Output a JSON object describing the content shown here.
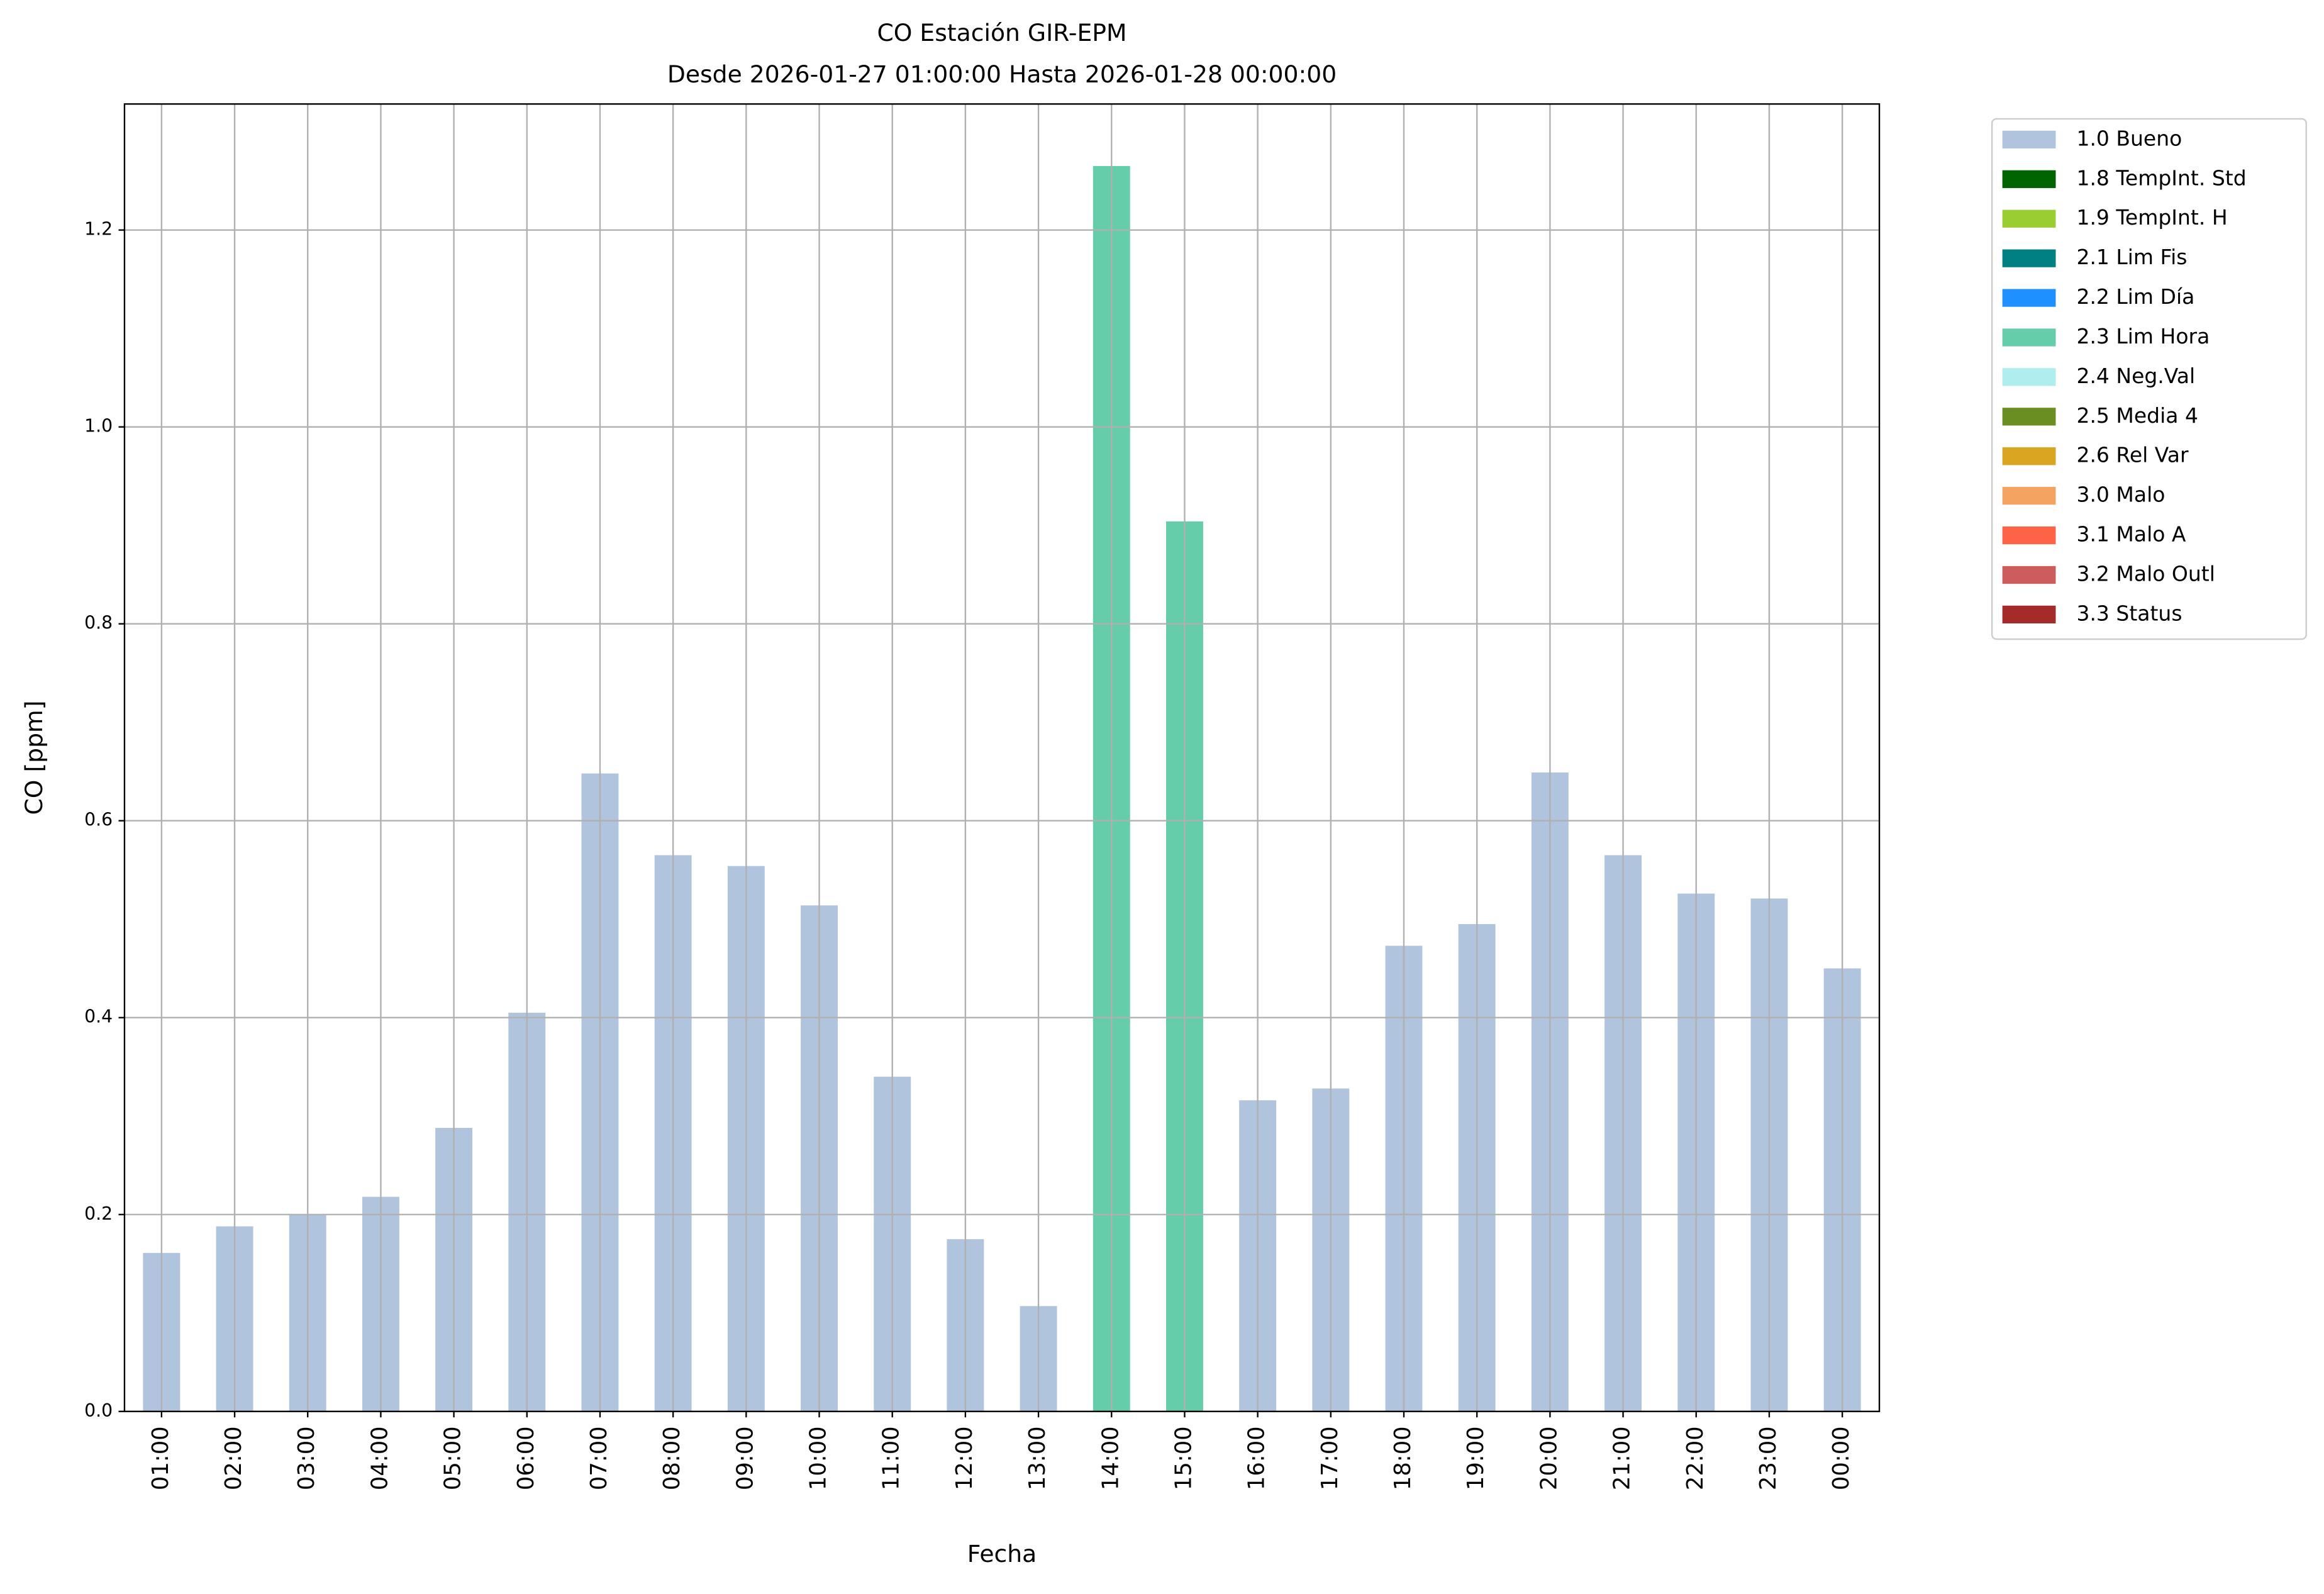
{
  "chart_data": {
    "type": "bar",
    "stacked": true,
    "title": "CO Estación GIR-EPM",
    "subtitle": "Desde 2026-01-27 01:00:00 Hasta 2026-01-28 00:00:00",
    "x_label": "Fecha",
    "y_label": "CO [ppm]",
    "categories": [
      "01:00",
      "02:00",
      "03:00",
      "04:00",
      "05:00",
      "06:00",
      "07:00",
      "08:00",
      "09:00",
      "10:00",
      "11:00",
      "12:00",
      "13:00",
      "14:00",
      "15:00",
      "16:00",
      "17:00",
      "18:00",
      "19:00",
      "20:00",
      "21:00",
      "22:00",
      "23:00",
      "00:00"
    ],
    "series": [
      {
        "name": "1.0 Bueno",
        "color": "#b0c4de",
        "values": [
          0.161,
          0.188,
          0.2,
          0.218,
          0.288,
          0.405,
          0.648,
          0.565,
          0.554,
          0.514,
          0.34,
          0.175,
          0.107,
          null,
          null,
          0.316,
          0.328,
          0.473,
          0.495,
          0.649,
          0.565,
          0.526,
          0.521,
          0.45
        ]
      },
      {
        "name": "1.8 TempInt. Std",
        "color": "#006400",
        "values": [
          null,
          null,
          null,
          null,
          null,
          null,
          null,
          null,
          null,
          null,
          null,
          null,
          null,
          null,
          null,
          null,
          null,
          null,
          null,
          null,
          null,
          null,
          null,
          null
        ]
      },
      {
        "name": "1.9 TempInt. H",
        "color": "#9acd32",
        "values": [
          null,
          null,
          null,
          null,
          null,
          null,
          null,
          null,
          null,
          null,
          null,
          null,
          null,
          null,
          null,
          null,
          null,
          null,
          null,
          null,
          null,
          null,
          null,
          null
        ]
      },
      {
        "name": "2.1 Lim Fis",
        "color": "#008080",
        "values": [
          null,
          null,
          null,
          null,
          null,
          null,
          null,
          null,
          null,
          null,
          null,
          null,
          null,
          null,
          null,
          null,
          null,
          null,
          null,
          null,
          null,
          null,
          null,
          null
        ]
      },
      {
        "name": "2.2 Lim Día",
        "color": "#1e90ff",
        "values": [
          null,
          null,
          null,
          null,
          null,
          null,
          null,
          null,
          null,
          null,
          null,
          null,
          null,
          null,
          null,
          null,
          null,
          null,
          null,
          null,
          null,
          null,
          null,
          null
        ]
      },
      {
        "name": "2.3 Lim Hora",
        "color": "#66cdaa",
        "values": [
          null,
          null,
          null,
          null,
          null,
          null,
          null,
          null,
          null,
          null,
          null,
          null,
          null,
          1.265,
          0.904,
          null,
          null,
          null,
          null,
          null,
          null,
          null,
          null,
          null
        ]
      },
      {
        "name": "2.4 Neg.Val",
        "color": "#afeeee",
        "values": [
          null,
          null,
          null,
          null,
          null,
          null,
          null,
          null,
          null,
          null,
          null,
          null,
          null,
          null,
          null,
          null,
          null,
          null,
          null,
          null,
          null,
          null,
          null,
          null
        ]
      },
      {
        "name": "2.5 Media 4",
        "color": "#6b8e23",
        "values": [
          null,
          null,
          null,
          null,
          null,
          null,
          null,
          null,
          null,
          null,
          null,
          null,
          null,
          null,
          null,
          null,
          null,
          null,
          null,
          null,
          null,
          null,
          null,
          null
        ]
      },
      {
        "name": "2.6 Rel Var",
        "color": "#daa520",
        "values": [
          null,
          null,
          null,
          null,
          null,
          null,
          null,
          null,
          null,
          null,
          null,
          null,
          null,
          null,
          null,
          null,
          null,
          null,
          null,
          null,
          null,
          null,
          null,
          null
        ]
      },
      {
        "name": "3.0 Malo",
        "color": "#f4a460",
        "values": [
          null,
          null,
          null,
          null,
          null,
          null,
          null,
          null,
          null,
          null,
          null,
          null,
          null,
          null,
          null,
          null,
          null,
          null,
          null,
          null,
          null,
          null,
          null,
          null
        ]
      },
      {
        "name": "3.1 Malo A",
        "color": "#ff6347",
        "values": [
          null,
          null,
          null,
          null,
          null,
          null,
          null,
          null,
          null,
          null,
          null,
          null,
          null,
          null,
          null,
          null,
          null,
          null,
          null,
          null,
          null,
          null,
          null,
          null
        ]
      },
      {
        "name": "3.2 Malo Outl",
        "color": "#cd5c5c",
        "values": [
          null,
          null,
          null,
          null,
          null,
          null,
          null,
          null,
          null,
          null,
          null,
          null,
          null,
          null,
          null,
          null,
          null,
          null,
          null,
          null,
          null,
          null,
          null,
          null
        ]
      },
      {
        "name": "3.3 Status",
        "color": "#a52a2a",
        "values": [
          null,
          null,
          null,
          null,
          null,
          null,
          null,
          null,
          null,
          null,
          null,
          null,
          null,
          null,
          null,
          null,
          null,
          null,
          null,
          null,
          null,
          null,
          null,
          null
        ]
      }
    ],
    "ylim": [
      0,
      1.328
    ],
    "yticks": [
      {
        "value": 0,
        "label": "0.0"
      },
      0.2,
      0.4,
      0.6,
      0.8,
      {
        "value": 1,
        "label": "1.0"
      },
      1.2
    ],
    "grid": true,
    "legend": "outside right"
  }
}
